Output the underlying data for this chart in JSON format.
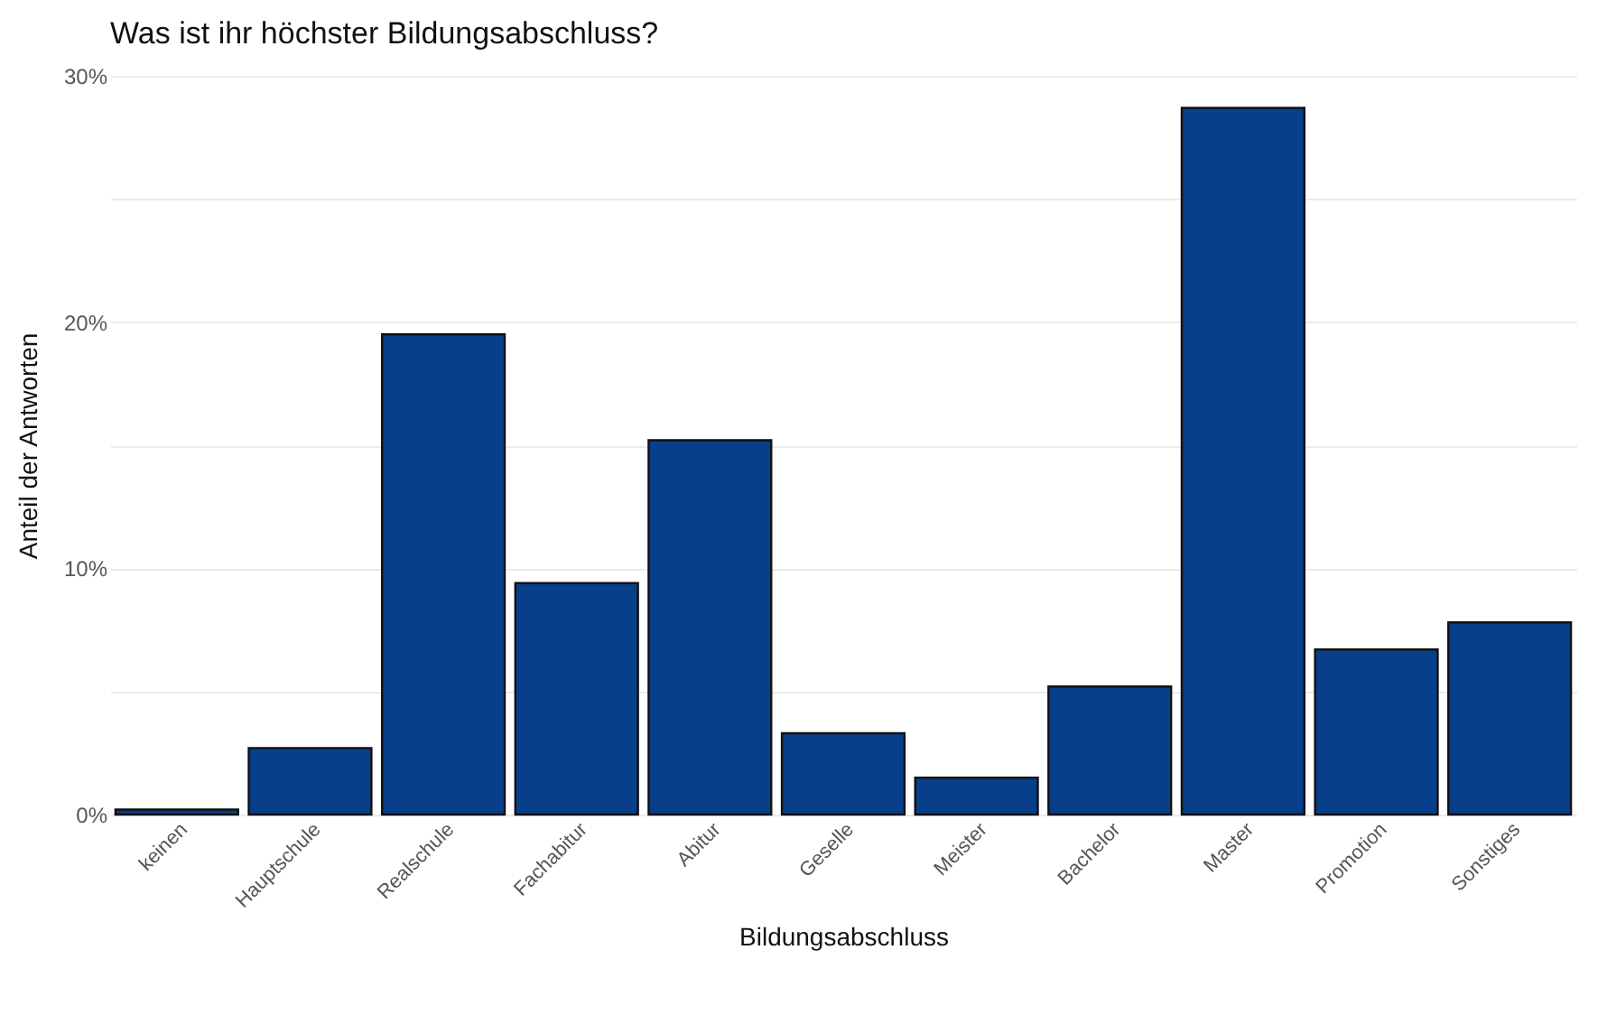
{
  "chart_data": {
    "type": "bar",
    "title": "Was ist ihr höchster Bildungsabschluss?",
    "xlabel": "Bildungsabschluss",
    "ylabel": "Anteil der Antworten",
    "categories": [
      "keinen",
      "Hauptschule",
      "Realschule",
      "Fachabitur",
      "Abitur",
      "Geselle",
      "Meister",
      "Bachelor",
      "Master",
      "Promotion",
      "Sonstiges"
    ],
    "values": [
      0.2,
      2.7,
      19.5,
      9.4,
      15.2,
      3.3,
      1.5,
      5.2,
      28.7,
      6.7,
      7.8
    ],
    "color": "#083f8a",
    "ylim": [
      0,
      30
    ],
    "yticks": [
      {
        "value": 0,
        "label": "0%"
      },
      {
        "value": 5,
        "label": null
      },
      {
        "value": 10,
        "label": "10%"
      },
      {
        "value": 15,
        "label": null
      },
      {
        "value": 20,
        "label": "20%"
      },
      {
        "value": 25,
        "label": null
      },
      {
        "value": 30,
        "label": "30%"
      }
    ],
    "grid": "y"
  }
}
